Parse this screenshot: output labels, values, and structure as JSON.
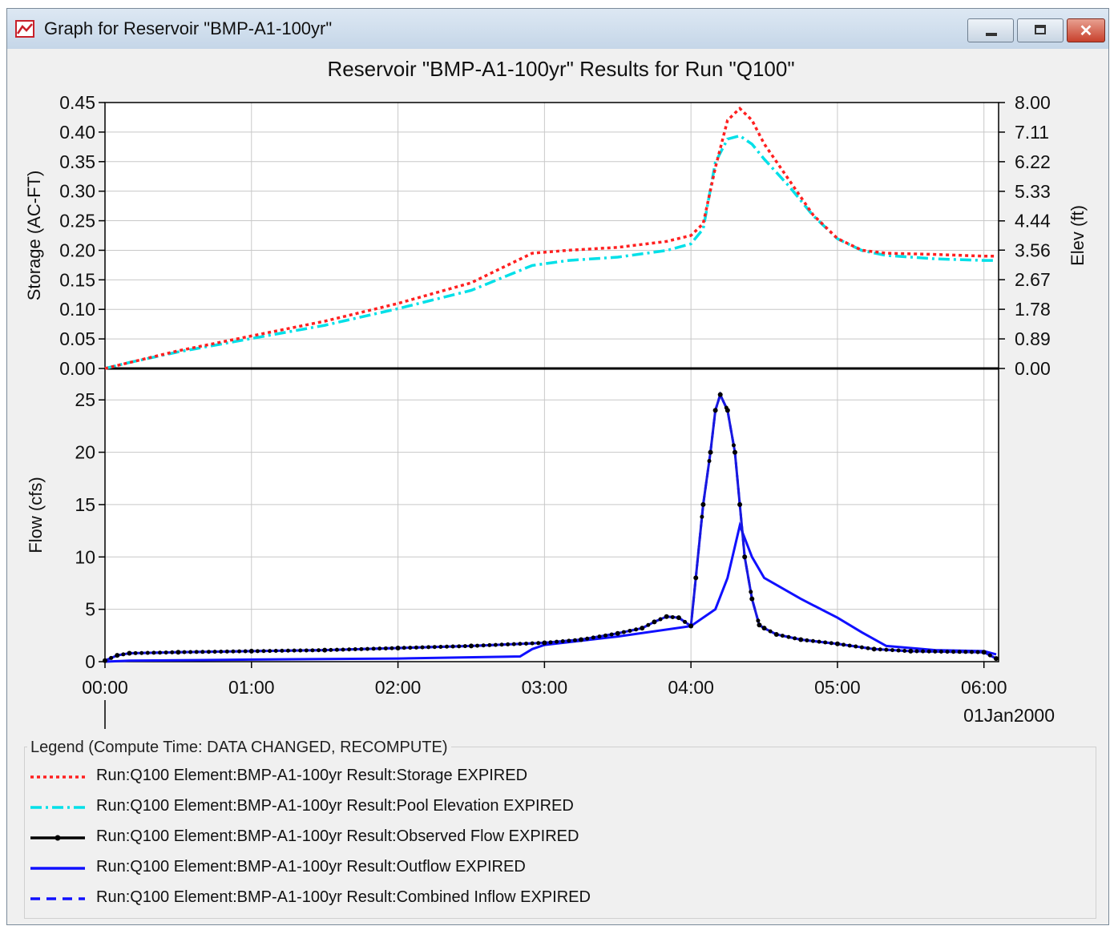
{
  "window": {
    "title": "Graph for Reservoir \"BMP-A1-100yr\"",
    "icon": "chart-icon",
    "buttons": [
      {
        "name": "minimize",
        "icon": "minimize-icon"
      },
      {
        "name": "maximize",
        "icon": "maximize-icon"
      },
      {
        "name": "close",
        "icon": "close-icon",
        "label": "✕"
      }
    ]
  },
  "legend": {
    "title": "Legend (Compute Time: DATA CHANGED, RECOMPUTE)",
    "items": [
      {
        "label": "Run:Q100 Element:BMP-A1-100yr Result:Storage EXPIRED",
        "color": "#ff2020",
        "style": "dotted"
      },
      {
        "label": "Run:Q100 Element:BMP-A1-100yr Result:Pool Elevation EXPIRED",
        "color": "#00e0e8",
        "style": "dashdot"
      },
      {
        "label": "Run:Q100 Element:BMP-A1-100yr Result:Observed Flow EXPIRED",
        "color": "#000000",
        "style": "solid-marker"
      },
      {
        "label": "Run:Q100 Element:BMP-A1-100yr Result:Outflow EXPIRED",
        "color": "#1010ff",
        "style": "solid"
      },
      {
        "label": "Run:Q100 Element:BMP-A1-100yr Result:Combined Inflow EXPIRED",
        "color": "#1010ff",
        "style": "dashed"
      }
    ]
  },
  "chart_data": [
    {
      "type": "line",
      "title": "Reservoir \"BMP-A1-100yr\" Results for Run \"Q100\"",
      "ylabel": "Storage (AC-FT)",
      "y2label": "Elev (ft)",
      "ylim": [
        0,
        0.45
      ],
      "y2lim": [
        0,
        8.0
      ],
      "yticks": [
        "0.00",
        "0.05",
        "0.10",
        "0.15",
        "0.20",
        "0.25",
        "0.30",
        "0.35",
        "0.40",
        "0.45"
      ],
      "y2ticks": [
        "0.00",
        "0.89",
        "1.78",
        "2.67",
        "3.56",
        "4.44",
        "5.33",
        "6.22",
        "7.11",
        "8.00"
      ],
      "grid": true,
      "series": [
        {
          "name": "Storage",
          "axis": "left",
          "color": "#ff2020",
          "x": [
            "00:00",
            "00:10",
            "00:30",
            "01:00",
            "01:30",
            "02:00",
            "02:30",
            "02:55",
            "03:10",
            "03:30",
            "03:50",
            "04:00",
            "04:05",
            "04:10",
            "04:15",
            "04:20",
            "04:25",
            "04:30",
            "04:40",
            "04:50",
            "05:00",
            "05:10",
            "05:20",
            "05:40",
            "06:00",
            "06:05"
          ],
          "values": [
            0.0,
            0.01,
            0.03,
            0.055,
            0.08,
            0.11,
            0.145,
            0.195,
            0.2,
            0.205,
            0.215,
            0.225,
            0.245,
            0.34,
            0.42,
            0.44,
            0.42,
            0.38,
            0.32,
            0.26,
            0.22,
            0.2,
            0.195,
            0.193,
            0.19,
            0.19
          ]
        },
        {
          "name": "Pool Elevation",
          "axis": "right",
          "color": "#00e0e8",
          "x": [
            "00:00",
            "00:10",
            "00:30",
            "01:00",
            "01:30",
            "02:00",
            "02:30",
            "02:55",
            "03:10",
            "03:30",
            "03:50",
            "04:00",
            "04:05",
            "04:10",
            "04:15",
            "04:20",
            "04:25",
            "04:30",
            "04:40",
            "04:50",
            "05:00",
            "05:10",
            "05:20",
            "05:40",
            "06:00",
            "06:05"
          ],
          "values": [
            0.0,
            0.18,
            0.5,
            0.9,
            1.3,
            1.8,
            2.35,
            3.1,
            3.25,
            3.35,
            3.55,
            3.75,
            4.2,
            6.2,
            6.9,
            7.0,
            6.75,
            6.3,
            5.5,
            4.6,
            3.9,
            3.55,
            3.4,
            3.3,
            3.25,
            3.25
          ]
        }
      ]
    },
    {
      "type": "line",
      "ylabel": "Flow (cfs)",
      "ylim": [
        0,
        28
      ],
      "yticks": [
        "0",
        "5",
        "10",
        "15",
        "20",
        "25"
      ],
      "xticks": [
        "00:00",
        "01:00",
        "02:00",
        "03:00",
        "04:00",
        "05:00",
        "06:00"
      ],
      "xdate": "01Jan2000",
      "grid": true,
      "series": [
        {
          "name": "Observed Flow",
          "color": "#000000",
          "marker": true,
          "x": [
            "00:00",
            "00:05",
            "00:10",
            "00:30",
            "01:00",
            "01:30",
            "02:00",
            "02:30",
            "03:00",
            "03:15",
            "03:30",
            "03:40",
            "03:45",
            "03:50",
            "03:55",
            "04:00",
            "04:02",
            "04:05",
            "04:08",
            "04:10",
            "04:12",
            "04:15",
            "04:18",
            "04:20",
            "04:22",
            "04:25",
            "04:28",
            "04:30",
            "04:35",
            "04:45",
            "05:00",
            "05:15",
            "05:30",
            "06:00",
            "06:05"
          ],
          "values": [
            0.1,
            0.6,
            0.8,
            0.9,
            1.0,
            1.1,
            1.3,
            1.5,
            1.8,
            2.1,
            2.7,
            3.2,
            3.8,
            4.3,
            4.2,
            3.4,
            8.0,
            15.0,
            20.0,
            24.0,
            25.5,
            24.0,
            20.0,
            15.0,
            10.0,
            6.0,
            3.5,
            3.2,
            2.6,
            2.1,
            1.7,
            1.2,
            1.0,
            0.9,
            0.3
          ]
        },
        {
          "name": "Outflow",
          "color": "#1010ff",
          "x": [
            "00:00",
            "00:10",
            "00:40",
            "01:00",
            "02:00",
            "02:50",
            "02:55",
            "03:00",
            "03:30",
            "04:00",
            "04:10",
            "04:15",
            "04:20",
            "04:25",
            "04:30",
            "04:45",
            "05:00",
            "05:10",
            "05:20",
            "05:40",
            "06:00",
            "06:05"
          ],
          "values": [
            0.0,
            0.1,
            0.15,
            0.2,
            0.3,
            0.5,
            1.2,
            1.6,
            2.4,
            3.4,
            5.0,
            8.0,
            13.0,
            10.0,
            8.0,
            6.0,
            4.2,
            2.8,
            1.5,
            1.1,
            1.0,
            0.7
          ]
        }
      ]
    }
  ]
}
